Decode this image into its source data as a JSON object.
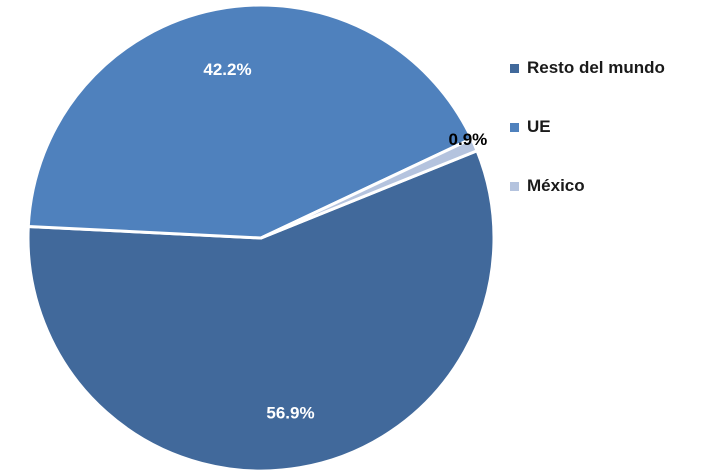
{
  "chart_data": {
    "type": "pie",
    "title": "",
    "slices": [
      {
        "label": "Resto del mundo",
        "value": 56.9,
        "value_label": "56.9%",
        "color": "#41699B"
      },
      {
        "label": "UE",
        "value": 42.2,
        "value_label": "42.2%",
        "color": "#4F81BD"
      },
      {
        "label": "México",
        "value": 0.9,
        "value_label": "0.9%",
        "color": "#B4C3DE"
      }
    ],
    "legend_placement": "right"
  }
}
